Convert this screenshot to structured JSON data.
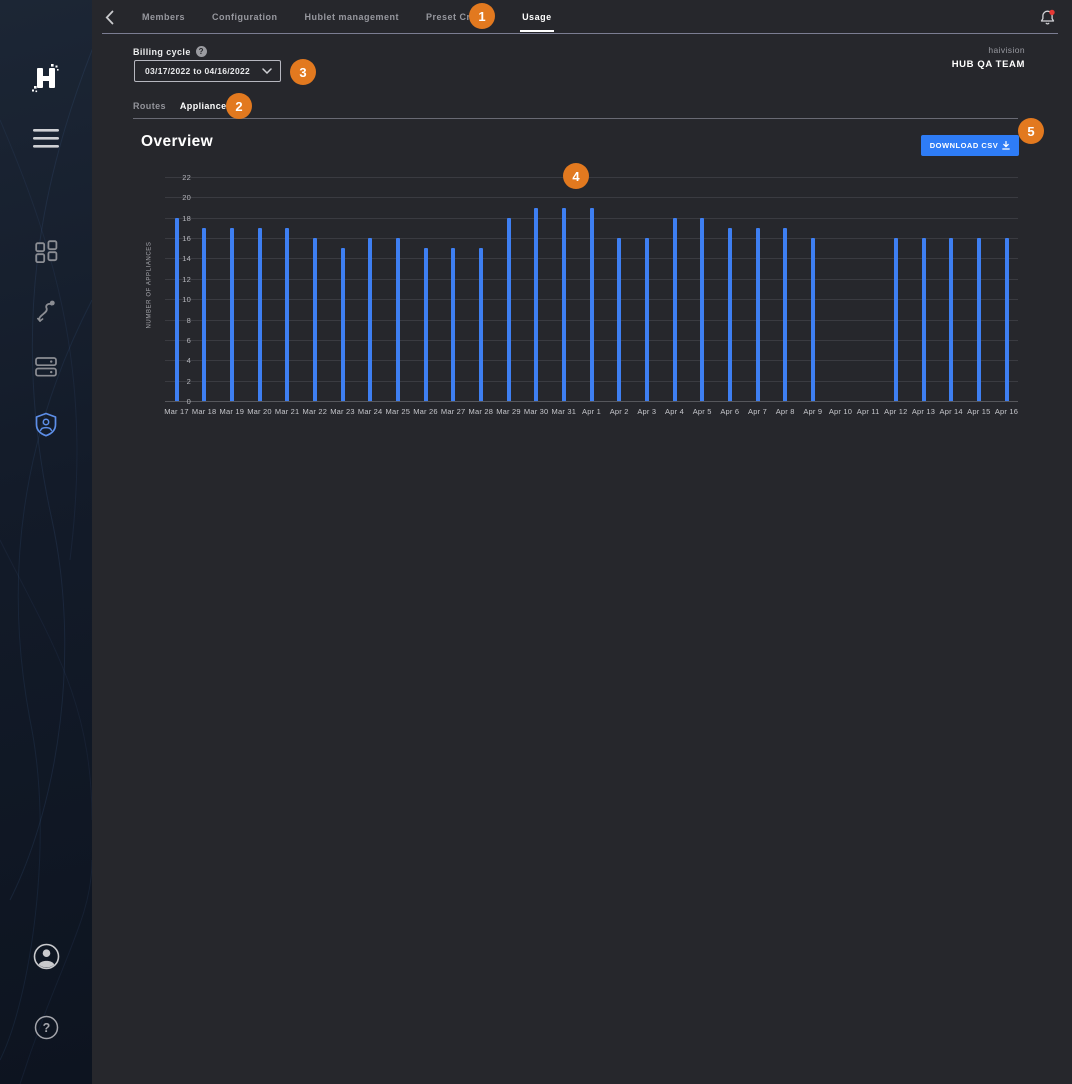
{
  "topnav": {
    "back_icon": "chevron-left",
    "items": [
      {
        "label": "Members",
        "active": false
      },
      {
        "label": "Configuration",
        "active": false
      },
      {
        "label": "Hublet management",
        "active": false
      },
      {
        "label": "Preset Creator",
        "active": false
      },
      {
        "label": "Usage",
        "active": true
      }
    ],
    "bell_icon": "notification-bell",
    "bell_has_alert": true
  },
  "billing": {
    "label": "Billing cycle",
    "help_icon": "question-circle",
    "help_glyph": "?",
    "dropdown_value": "03/17/2022 to 04/16/2022"
  },
  "team": {
    "org": "haivision",
    "name": "HUB QA TEAM"
  },
  "tabs": [
    {
      "label": "Routes",
      "active": false
    },
    {
      "label": "Appliances",
      "active": true
    }
  ],
  "overview": {
    "title": "Overview",
    "download_button": "DOWNLOAD CSV",
    "download_icon": "download-arrow"
  },
  "annotations": {
    "badges": [
      "1",
      "2",
      "3",
      "4",
      "5"
    ]
  },
  "sidebar_icons": [
    "haivision-logo",
    "hamburger-menu-icon",
    "dashboard-grid-icon",
    "routes-icon",
    "appliances-icon",
    "admin-shield-icon",
    "account-icon",
    "help-icon"
  ],
  "colors": {
    "accent_orange": "#e2791f",
    "button_blue": "#2e7cf6",
    "bar_blue": "#3e7ff2",
    "sidebar_navy": "#131b29",
    "background": "#26272c"
  },
  "chart_data": {
    "type": "bar",
    "title": "Overview",
    "categories": [
      "Mar 17",
      "Mar 18",
      "Mar 19",
      "Mar 20",
      "Mar 21",
      "Mar 22",
      "Mar 23",
      "Mar 24",
      "Mar 25",
      "Mar 26",
      "Mar 27",
      "Mar 28",
      "Mar 29",
      "Mar 30",
      "Mar 31",
      "Apr 1",
      "Apr 2",
      "Apr 3",
      "Apr 4",
      "Apr 5",
      "Apr 6",
      "Apr 7",
      "Apr 8",
      "Apr 9",
      "Apr 10",
      "Apr 11",
      "Apr 12",
      "Apr 13",
      "Apr 14",
      "Apr 15",
      "Apr 16"
    ],
    "values": [
      18,
      17,
      17,
      17,
      17,
      16,
      15,
      16,
      16,
      15,
      15,
      15,
      18,
      19,
      19,
      19,
      16,
      16,
      18,
      18,
      17,
      17,
      17,
      16,
      0,
      0,
      16,
      16,
      16,
      16,
      16
    ],
    "xlabel": "",
    "ylabel": "NUMBER OF APPLIANCES",
    "ylim": [
      0,
      22
    ],
    "ytick_step": 2,
    "grid": true,
    "legend": false,
    "bar_color": "#3e7ff2"
  }
}
